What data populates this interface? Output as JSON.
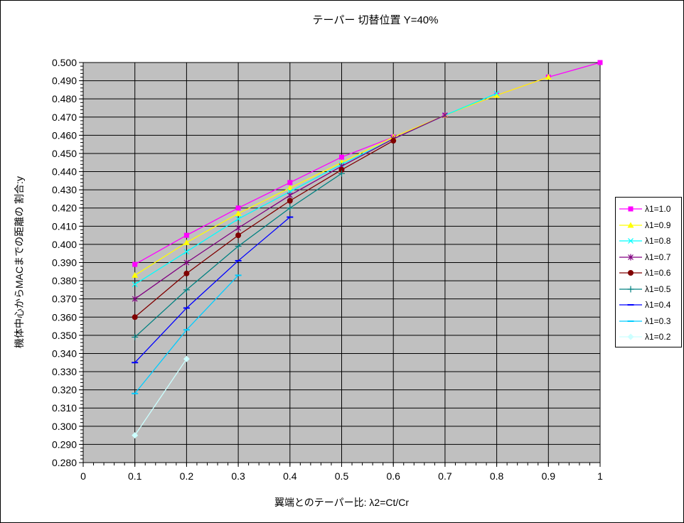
{
  "chart_data": {
    "type": "line",
    "title": "テーパー 切替位置 Y=40%",
    "xlabel": "翼端とのテーパー比: λ2=Ct/Cr",
    "ylabel": "機体中心からMACまでの距離の 割合:y",
    "xlim": [
      0,
      1
    ],
    "ylim": [
      0.28,
      0.5
    ],
    "x_ticks": [
      "0",
      "0.1",
      "0.2",
      "0.3",
      "0.4",
      "0.5",
      "0.6",
      "0.7",
      "0.8",
      "0.9",
      "1"
    ],
    "y_ticks": [
      "0.280",
      "0.290",
      "0.300",
      "0.310",
      "0.320",
      "0.330",
      "0.340",
      "0.350",
      "0.360",
      "0.370",
      "0.380",
      "0.390",
      "0.400",
      "0.410",
      "0.420",
      "0.430",
      "0.440",
      "0.450",
      "0.460",
      "0.470",
      "0.480",
      "0.490",
      "0.500"
    ],
    "x_minor_step": 0.02,
    "y_minor_step": 0.002,
    "grid": true,
    "legend_position": "right",
    "plot_bg": "#c0c0c0",
    "grid_color": "#000000",
    "series": [
      {
        "name": "λ1=1.0",
        "color": "#ff00ff",
        "marker": "square",
        "points": [
          [
            0.1,
            0.389
          ],
          [
            0.2,
            0.405
          ],
          [
            0.3,
            0.42
          ],
          [
            0.4,
            0.434
          ],
          [
            0.5,
            0.448
          ],
          [
            0.6,
            0.459
          ],
          [
            0.7,
            0.471
          ],
          [
            0.8,
            0.482
          ],
          [
            0.9,
            0.492
          ],
          [
            1.0,
            0.5
          ]
        ]
      },
      {
        "name": "λ1=0.9",
        "color": "#ffff00",
        "marker": "triangle",
        "points": [
          [
            0.1,
            0.383
          ],
          [
            0.2,
            0.401
          ],
          [
            0.3,
            0.417
          ],
          [
            0.4,
            0.431
          ],
          [
            0.5,
            0.445
          ],
          [
            0.6,
            0.459
          ],
          [
            0.7,
            0.471
          ],
          [
            0.8,
            0.482
          ],
          [
            0.9,
            0.492
          ]
        ]
      },
      {
        "name": "λ1=0.8",
        "color": "#00ffff",
        "marker": "x",
        "points": [
          [
            0.1,
            0.378
          ],
          [
            0.2,
            0.396
          ],
          [
            0.3,
            0.414
          ],
          [
            0.4,
            0.429
          ],
          [
            0.5,
            0.444
          ],
          [
            0.6,
            0.458
          ],
          [
            0.7,
            0.471
          ],
          [
            0.8,
            0.483
          ]
        ]
      },
      {
        "name": "λ1=0.7",
        "color": "#800080",
        "marker": "star",
        "points": [
          [
            0.1,
            0.37
          ],
          [
            0.2,
            0.39
          ],
          [
            0.3,
            0.409
          ],
          [
            0.4,
            0.427
          ],
          [
            0.5,
            0.443
          ],
          [
            0.6,
            0.458
          ],
          [
            0.7,
            0.471
          ]
        ]
      },
      {
        "name": "λ1=0.6",
        "color": "#800000",
        "marker": "circle",
        "points": [
          [
            0.1,
            0.36
          ],
          [
            0.2,
            0.384
          ],
          [
            0.3,
            0.405
          ],
          [
            0.4,
            0.424
          ],
          [
            0.5,
            0.441
          ],
          [
            0.6,
            0.457
          ]
        ]
      },
      {
        "name": "λ1=0.5",
        "color": "#008080",
        "marker": "plus",
        "points": [
          [
            0.1,
            0.349
          ],
          [
            0.2,
            0.375
          ],
          [
            0.3,
            0.399
          ],
          [
            0.4,
            0.42
          ],
          [
            0.5,
            0.439
          ]
        ]
      },
      {
        "name": "λ1=0.4",
        "color": "#0000ff",
        "marker": "dash",
        "points": [
          [
            0.1,
            0.335
          ],
          [
            0.2,
            0.365
          ],
          [
            0.3,
            0.391
          ],
          [
            0.4,
            0.415
          ]
        ]
      },
      {
        "name": "λ1=0.3",
        "color": "#00ccff",
        "marker": "dash",
        "points": [
          [
            0.1,
            0.318
          ],
          [
            0.2,
            0.353
          ],
          [
            0.3,
            0.383
          ]
        ]
      },
      {
        "name": "λ1=0.2",
        "color": "#ccffff",
        "marker": "diamond",
        "points": [
          [
            0.1,
            0.295
          ],
          [
            0.2,
            0.337
          ]
        ]
      }
    ]
  }
}
